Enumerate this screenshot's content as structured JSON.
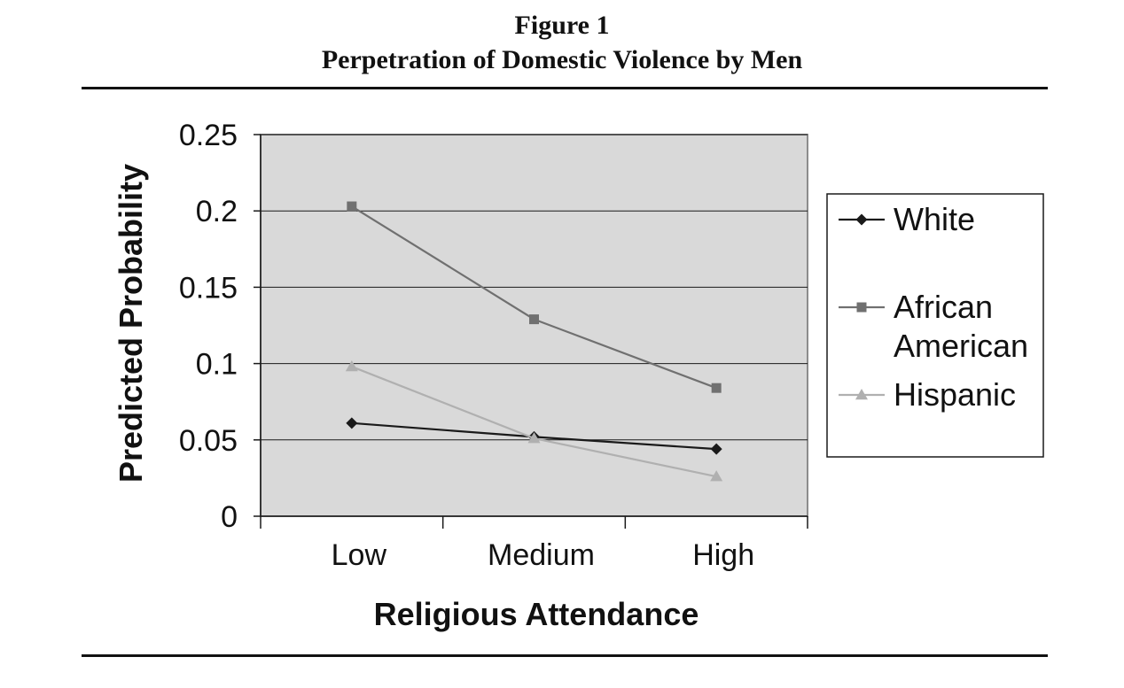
{
  "figure": {
    "label": "Figure 1",
    "title": "Perpetration of Domestic Violence by Men"
  },
  "chart_data": {
    "type": "line",
    "title": "Perpetration of Domestic Violence by Men",
    "xlabel": "Religious Attendance",
    "ylabel": "Predicted Probability",
    "categories": [
      "Low",
      "Medium",
      "High"
    ],
    "ylim": [
      0,
      0.25
    ],
    "yticks": [
      0,
      0.05,
      0.1,
      0.15,
      0.2,
      0.25
    ],
    "ytick_labels": [
      "0",
      "0.05",
      "0.1",
      "0.15",
      "0.2",
      "0.25"
    ],
    "grid": true,
    "legend_position": "right",
    "plot_background": "#d9d9d9",
    "series": [
      {
        "name": "White",
        "values": [
          0.061,
          0.052,
          0.044
        ],
        "color": "#1a1a1a",
        "marker": "diamond"
      },
      {
        "name": "African American",
        "values": [
          0.203,
          0.129,
          0.084
        ],
        "color": "#707070",
        "marker": "square"
      },
      {
        "name": "Hispanic",
        "values": [
          0.098,
          0.051,
          0.026
        ],
        "color": "#b0b0b0",
        "marker": "triangle"
      }
    ]
  }
}
